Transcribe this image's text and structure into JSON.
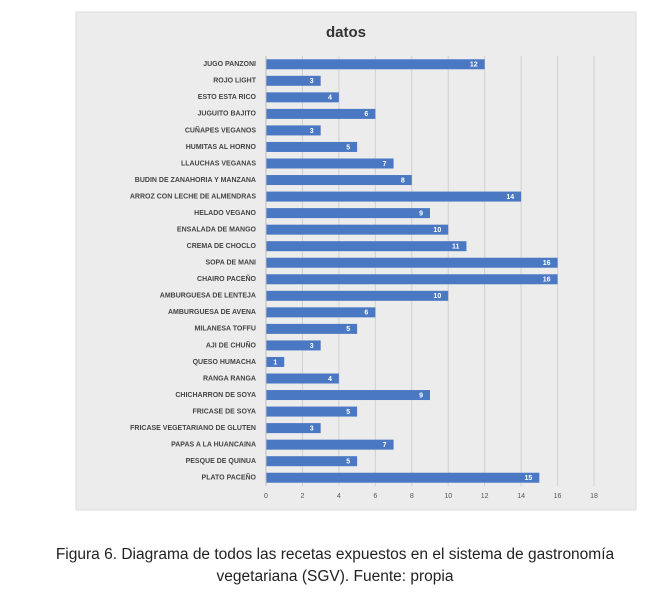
{
  "chart_data": {
    "type": "barh",
    "title": "datos",
    "categories": [
      "JUGO PANZONI",
      "ROJO LIGHT",
      "ESTO ESTA RICO",
      "JUGUITO BAJITO",
      "CUÑAPES VEGANOS",
      "HUMITAS AL HORNO",
      "LLAUCHAS VEGANAS",
      "BUDIN DE ZANAHORIA Y MANZANA",
      "ARROZ CON LECHE DE ALMENDRAS",
      "HELADO VEGANO",
      "ENSALADA DE MANGO",
      "CREMA DE CHOCLO",
      "SOPA DE MANI",
      "CHAIRO PACEÑO",
      "AMBURGUESA DE LENTEJA",
      "AMBURGUESA DE AVENA",
      "MILANESA TOFFU",
      "AJI DE CHUÑO",
      "QUESO HUMACHA",
      "RANGA RANGA",
      "CHICHARRON DE SOYA",
      "FRICASE DE SOYA",
      "FRICASE VEGETARIANO DE GLUTEN",
      "PAPAS A LA HUANCAINA",
      "PESQUE DE QUINUA",
      "PLATO PACEÑO"
    ],
    "values": [
      12,
      3,
      4,
      6,
      3,
      5,
      7,
      8,
      14,
      9,
      10,
      11,
      16,
      16,
      10,
      6,
      5,
      3,
      1,
      4,
      9,
      5,
      3,
      7,
      5,
      15
    ],
    "color": "#4a78c2",
    "xlim": [
      0,
      18
    ],
    "xticks": [
      0,
      2,
      4,
      6,
      8,
      10,
      12,
      14,
      16,
      18
    ],
    "grid": true
  },
  "caption": [
    "Figura 6.  Diagrama de todos las recetas expuestos en el sistema de gastronomía",
    "vegetariana (SGV). Fuente: propia"
  ]
}
